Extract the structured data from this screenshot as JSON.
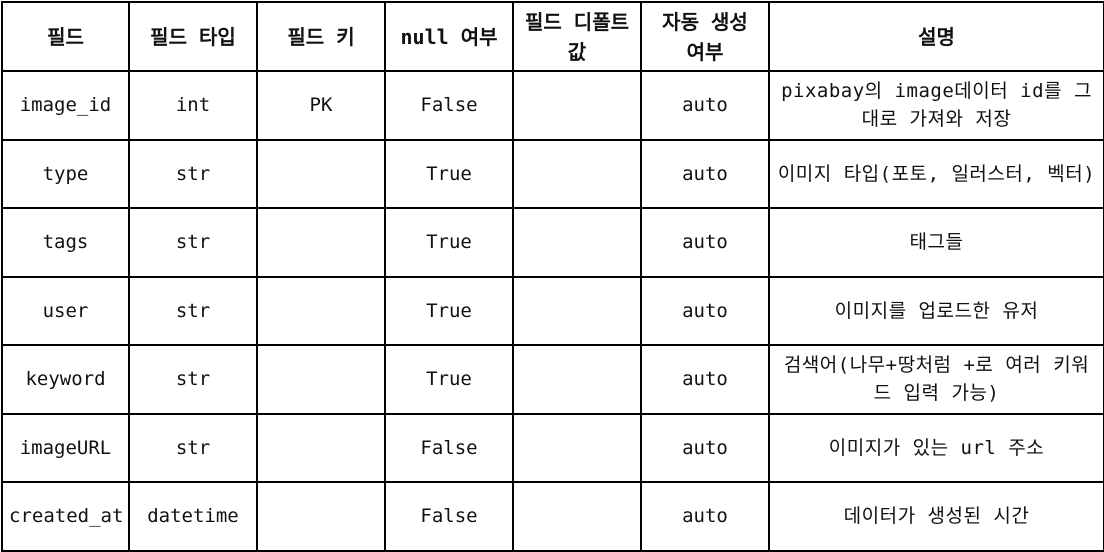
{
  "table": {
    "headers": [
      "필드",
      "필드 타입",
      "필드 키",
      "null 여부",
      "필드 디폴트 값",
      "자동 생성 여부",
      "설명"
    ],
    "rows": [
      [
        "image_id",
        "int",
        "PK",
        "False",
        "",
        "auto",
        "pixabay의 image데이터 id를 그대로 가져와 저장"
      ],
      [
        "type",
        "str",
        "",
        "True",
        "",
        "auto",
        "이미지 타입(포토, 일러스터, 벡터)"
      ],
      [
        "tags",
        "str",
        "",
        "True",
        "",
        "auto",
        "태그들"
      ],
      [
        "user",
        "str",
        "",
        "True",
        "",
        "auto",
        "이미지를 업로드한 유저"
      ],
      [
        "keyword",
        "str",
        "",
        "True",
        "",
        "auto",
        "검색어(나무+땅처럼 +로 여러 키워드 입력 가능)"
      ],
      [
        "imageURL",
        "str",
        "",
        "False",
        "",
        "auto",
        "이미지가 있는 url 주소"
      ],
      [
        "created_at",
        "datetime",
        "",
        "False",
        "",
        "auto",
        "데이터가 생성된 시간"
      ]
    ]
  }
}
